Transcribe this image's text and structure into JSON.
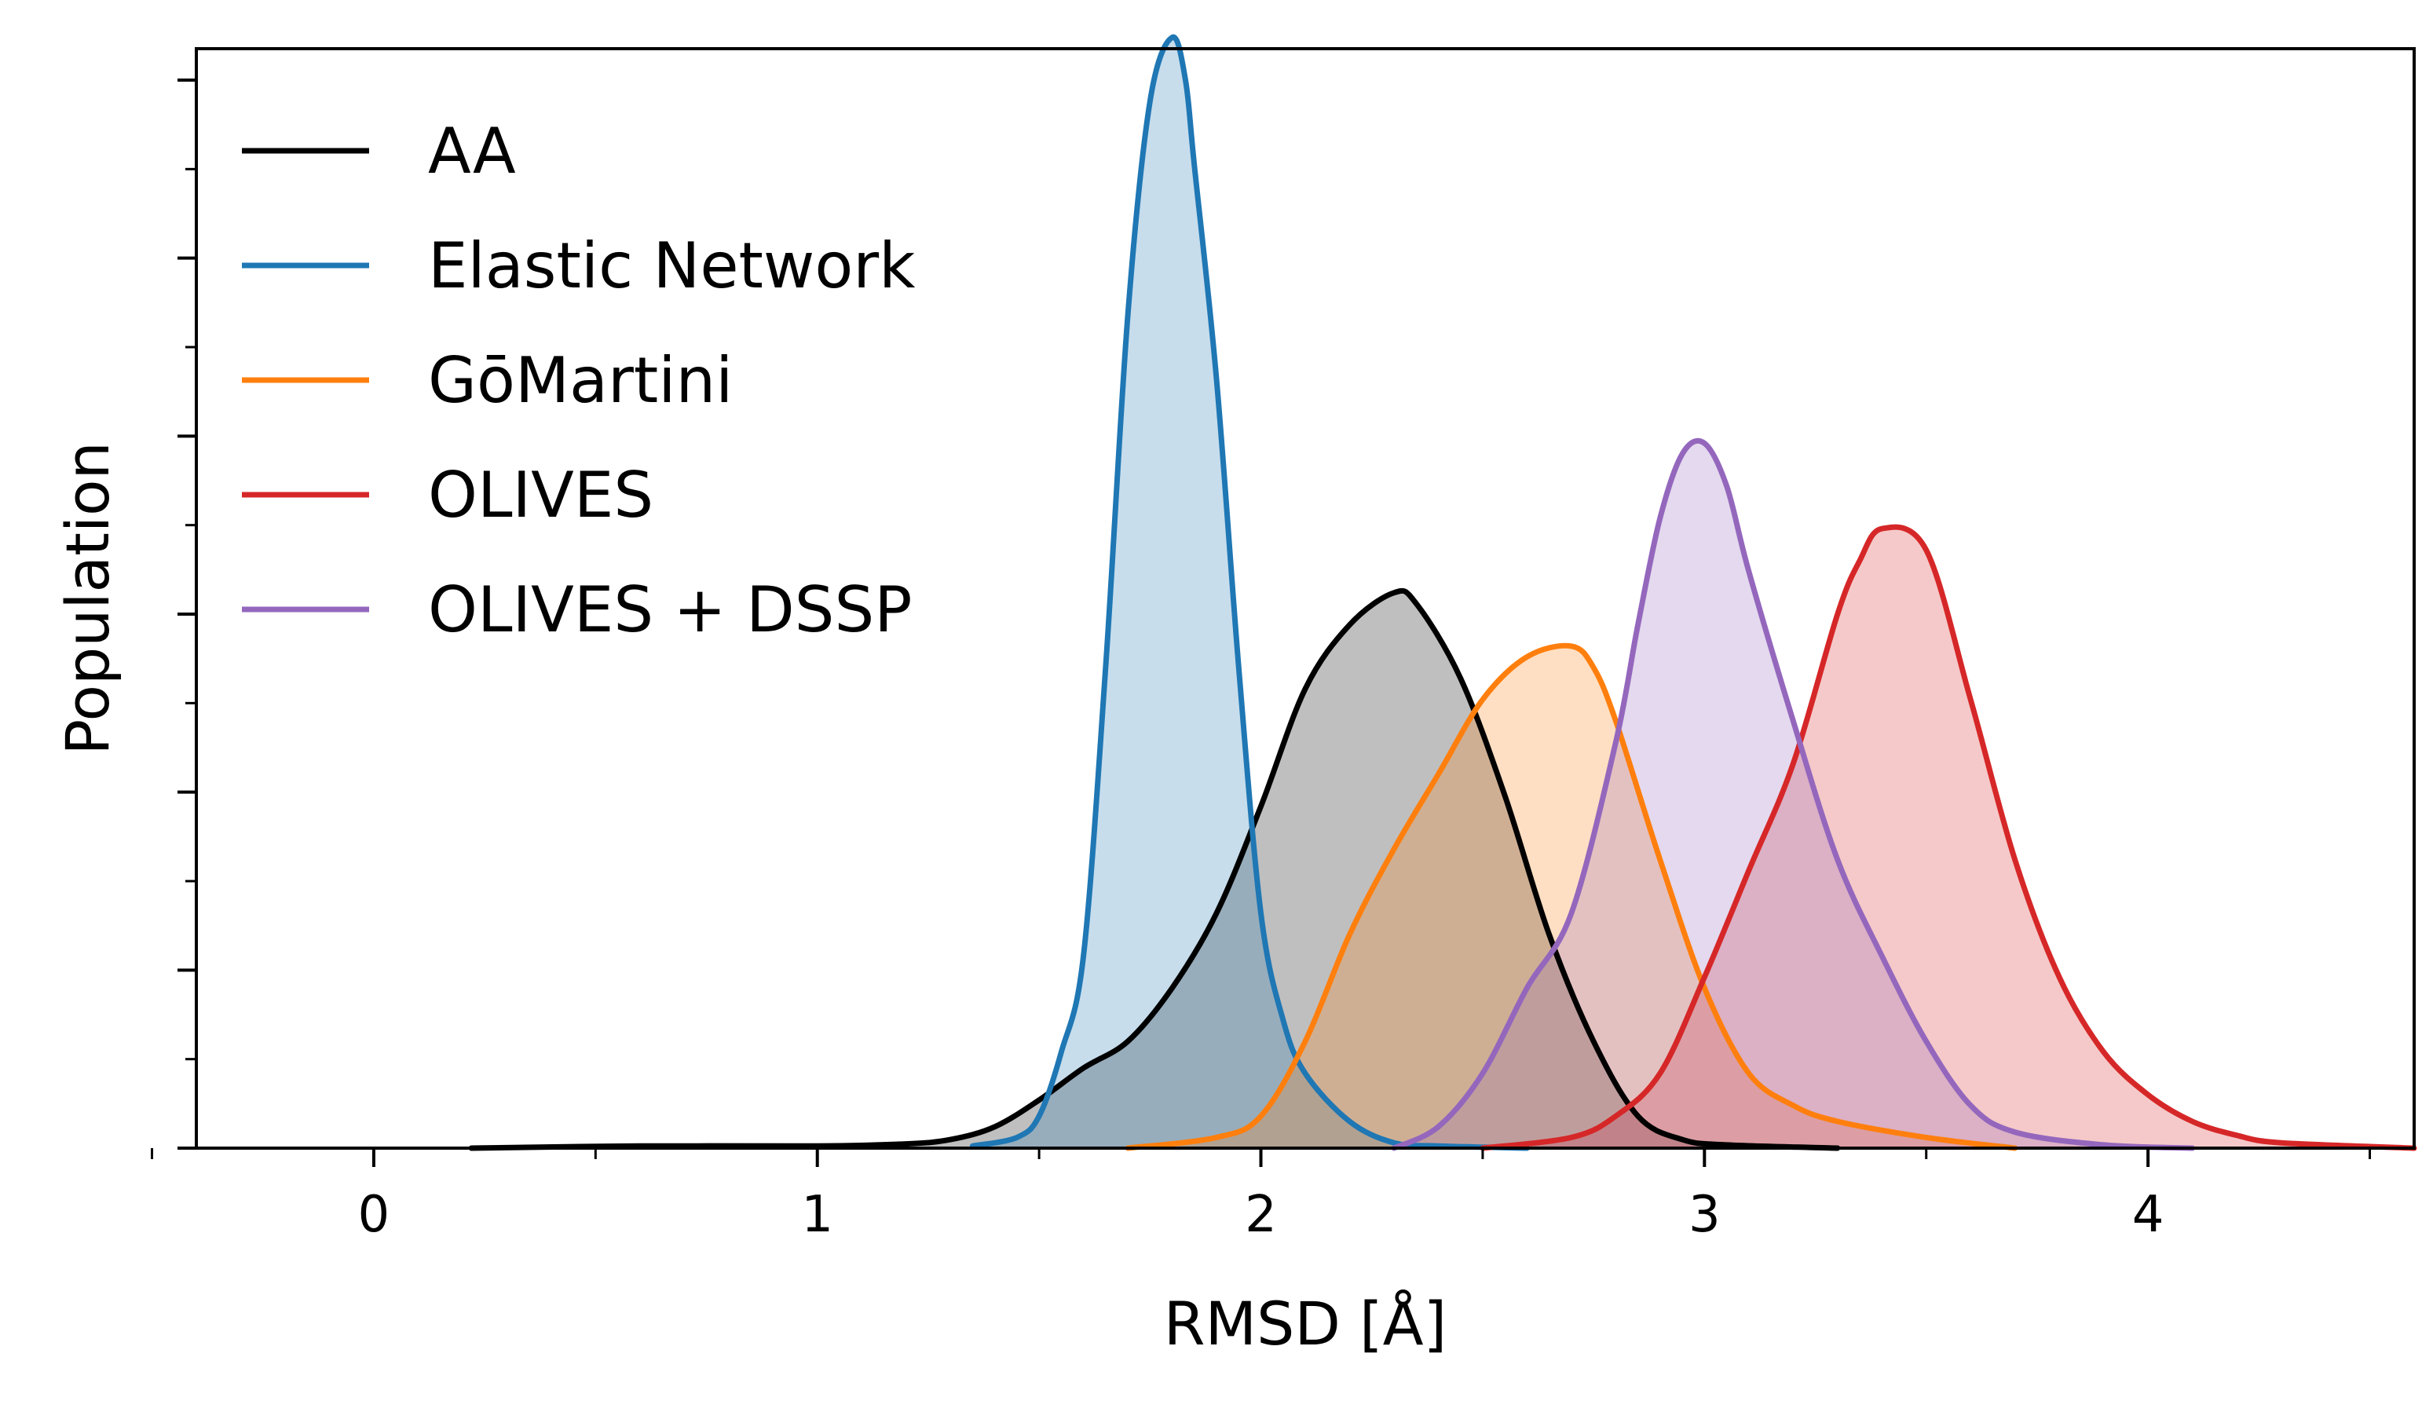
{
  "chart_data": {
    "type": "area",
    "xlabel": "RMSD [Å]",
    "ylabel": "Population",
    "xlim": [
      -0.4,
      4.6
    ],
    "ylim": [
      0,
      1.0
    ],
    "x_ticks": [
      "0",
      "1",
      "2",
      "3",
      "4"
    ],
    "x_tick_values": [
      0,
      1,
      2,
      3,
      4
    ],
    "y_tick_labels_shown": false,
    "grid": false,
    "legend_position": "top-left",
    "series": [
      {
        "name": "AA",
        "color": "#000000",
        "fill_opacity": 0.25,
        "x": [
          0.22,
          0.6,
          1.0,
          1.2,
          1.3,
          1.4,
          1.5,
          1.6,
          1.7,
          1.8,
          1.9,
          2.0,
          2.1,
          2.2,
          2.3,
          2.35,
          2.45,
          2.55,
          2.65,
          2.75,
          2.85,
          2.95,
          3.05,
          3.3
        ],
        "y": [
          0.0,
          0.002,
          0.002,
          0.004,
          0.008,
          0.02,
          0.045,
          0.075,
          0.1,
          0.15,
          0.22,
          0.32,
          0.43,
          0.49,
          0.52,
          0.51,
          0.44,
          0.33,
          0.2,
          0.1,
          0.03,
          0.008,
          0.003,
          0.0
        ]
      },
      {
        "name": "Elastic Network",
        "color": "#1f77b4",
        "fill_opacity": 0.25,
        "x": [
          1.35,
          1.45,
          1.5,
          1.55,
          1.6,
          1.65,
          1.7,
          1.75,
          1.8,
          1.83,
          1.85,
          1.9,
          1.95,
          2.0,
          2.05,
          2.1,
          2.2,
          2.3,
          2.4,
          2.6
        ],
        "y": [
          0.002,
          0.01,
          0.03,
          0.09,
          0.18,
          0.45,
          0.78,
          0.98,
          1.04,
          1.0,
          0.92,
          0.72,
          0.45,
          0.22,
          0.12,
          0.07,
          0.025,
          0.005,
          0.002,
          0.0
        ]
      },
      {
        "name": "GōMartini",
        "color": "#ff7f0e",
        "fill_opacity": 0.25,
        "x": [
          1.7,
          1.9,
          2.0,
          2.1,
          2.2,
          2.3,
          2.4,
          2.5,
          2.6,
          2.7,
          2.75,
          2.8,
          2.9,
          3.0,
          3.1,
          3.2,
          3.3,
          3.5,
          3.7
        ],
        "y": [
          0.0,
          0.01,
          0.03,
          0.1,
          0.2,
          0.28,
          0.35,
          0.42,
          0.46,
          0.47,
          0.45,
          0.4,
          0.27,
          0.15,
          0.07,
          0.04,
          0.025,
          0.01,
          0.0
        ]
      },
      {
        "name": "OLIVES",
        "color": "#d62728",
        "fill_opacity": 0.25,
        "x": [
          2.5,
          2.7,
          2.8,
          2.9,
          3.0,
          3.1,
          3.2,
          3.3,
          3.35,
          3.4,
          3.5,
          3.6,
          3.7,
          3.8,
          3.9,
          4.0,
          4.1,
          4.2,
          4.3,
          4.6
        ],
        "y": [
          0.0,
          0.01,
          0.03,
          0.07,
          0.16,
          0.26,
          0.36,
          0.5,
          0.55,
          0.58,
          0.56,
          0.42,
          0.27,
          0.16,
          0.09,
          0.05,
          0.025,
          0.012,
          0.005,
          0.0
        ]
      },
      {
        "name": "OLIVES + DSSP",
        "color": "#9467bd",
        "fill_opacity": 0.25,
        "x": [
          2.3,
          2.4,
          2.5,
          2.6,
          2.7,
          2.8,
          2.85,
          2.9,
          2.95,
          3.0,
          3.05,
          3.1,
          3.2,
          3.3,
          3.4,
          3.5,
          3.6,
          3.7,
          3.9,
          4.1
        ],
        "y": [
          0.0,
          0.02,
          0.07,
          0.15,
          0.22,
          0.38,
          0.49,
          0.59,
          0.65,
          0.66,
          0.62,
          0.54,
          0.4,
          0.27,
          0.18,
          0.1,
          0.04,
          0.015,
          0.003,
          0.0
        ]
      }
    ]
  }
}
